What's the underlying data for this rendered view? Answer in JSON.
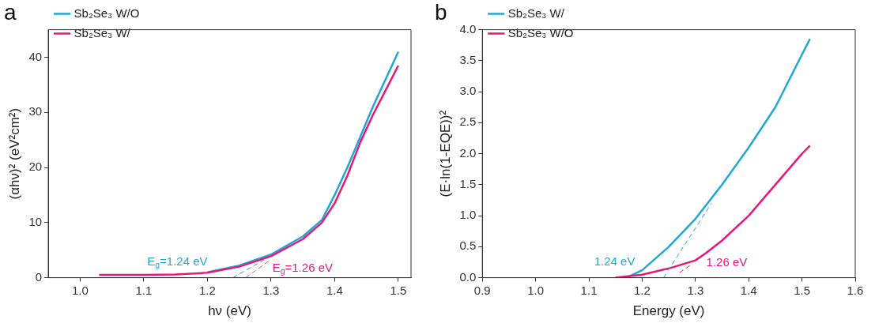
{
  "chart_data": [
    {
      "type": "line",
      "title": "a",
      "xlabel": "hν (eV)",
      "ylabel": "(αhν)² (eV²cm²)",
      "legend": "top left",
      "line_style": "solid",
      "marker": "none",
      "xlim": [
        0.95,
        1.52
      ],
      "xticks": [
        {
          "value": 1,
          "label": "1.0"
        },
        1.1,
        1.2,
        1.3,
        1.4,
        1.5
      ],
      "ylim": [
        0,
        45
      ],
      "yticks": [
        0,
        10,
        20,
        30,
        40
      ],
      "series": [
        {
          "name": "Sb₂Se₃ W/O",
          "color": "#1fa9d1",
          "x": [
            1.2,
            1.25,
            1.3,
            1.35,
            1.38,
            1.4,
            1.42,
            1.44,
            1.46,
            1.48,
            1.5
          ],
          "values": [
            1.0,
            2.2,
            4.2,
            7.5,
            10.5,
            15,
            20,
            25.5,
            31,
            36,
            41
          ]
        },
        {
          "name": "Sb₂Se₃ W/",
          "color": "#e8177a",
          "x": [
            1.03,
            1.1,
            1.15,
            1.2,
            1.25,
            1.3,
            1.35,
            1.38,
            1.4,
            1.42,
            1.44,
            1.46,
            1.48,
            1.5
          ],
          "values": [
            0.5,
            0.5,
            0.6,
            0.9,
            2.0,
            3.9,
            7.0,
            10,
            13.5,
            18.5,
            24.5,
            29.5,
            34,
            38.5
          ]
        },
        {
          "type": "line",
          "line_style": "dashed",
          "color": "#6a6fd8",
          "x": [
            1.24,
            1.29
          ],
          "values": [
            0,
            3.3
          ]
        },
        {
          "type": "line",
          "line_style": "dashed",
          "color": "#6a6fd8",
          "x": [
            1.26,
            1.3
          ],
          "values": [
            0,
            3.3
          ]
        }
      ],
      "annotations": [
        {
          "text": "E$_{g}$=1.24 eV",
          "x": 1.24,
          "y": 0
        },
        {
          "text": "E$_{g}$=1.26 eV",
          "x": 1.26,
          "y": 0
        }
      ]
    },
    {
      "type": "line",
      "title": "b",
      "xlabel": "Energy (eV)",
      "ylabel": "(E·ln(1-EQE))²",
      "legend": "top left",
      "line_style": "solid",
      "marker": "none",
      "xlim": [
        0.9,
        1.6
      ],
      "xticks": [
        0.9,
        {
          "value": 1,
          "label": "1.0"
        },
        1.1,
        1.2,
        1.3,
        1.4,
        1.5,
        1.6
      ],
      "ylim": [
        0,
        4
      ],
      "yticks": [
        {
          "value": 0,
          "label": "0.0"
        },
        0.5,
        {
          "value": 1,
          "label": "1.0"
        },
        1.5,
        {
          "value": 2,
          "label": "2.0"
        },
        2.5,
        {
          "value": 3,
          "label": "3.0"
        },
        3.5,
        {
          "value": 4,
          "label": "4.0"
        }
      ],
      "series": [
        {
          "name": "Sb₂Se₃ W/",
          "color": "#1fa9d1",
          "x": [
            1.17,
            1.2,
            1.25,
            1.3,
            1.35,
            1.4,
            1.45,
            1.5,
            1.515
          ],
          "values": [
            0,
            0.12,
            0.5,
            0.95,
            1.5,
            2.1,
            2.75,
            3.6,
            3.85
          ]
        },
        {
          "name": "Sb₂Se₃ W/O",
          "color": "#e8177a",
          "x": [
            1.15,
            1.2,
            1.25,
            1.3,
            1.32,
            1.35,
            1.4,
            1.45,
            1.5,
            1.515
          ],
          "values": [
            0,
            0.05,
            0.15,
            0.28,
            0.4,
            0.6,
            1.0,
            1.5,
            2.0,
            2.13
          ]
        },
        {
          "type": "line",
          "line_style": "dashed",
          "color": "#1fa9d1",
          "x": [
            1.24,
            1.33
          ],
          "values": [
            0,
            1.2
          ]
        },
        {
          "type": "line",
          "line_style": "dashed",
          "color": "#e8177a",
          "x": [
            1.27,
            1.29
          ],
          "values": [
            0.08,
            0.2
          ]
        }
      ],
      "annotations": [
        {
          "text": "1.24 eV",
          "x": 1.24,
          "y": 0
        },
        {
          "text": "1.26 eV",
          "x": 1.27,
          "y": 0.08
        }
      ]
    }
  ]
}
